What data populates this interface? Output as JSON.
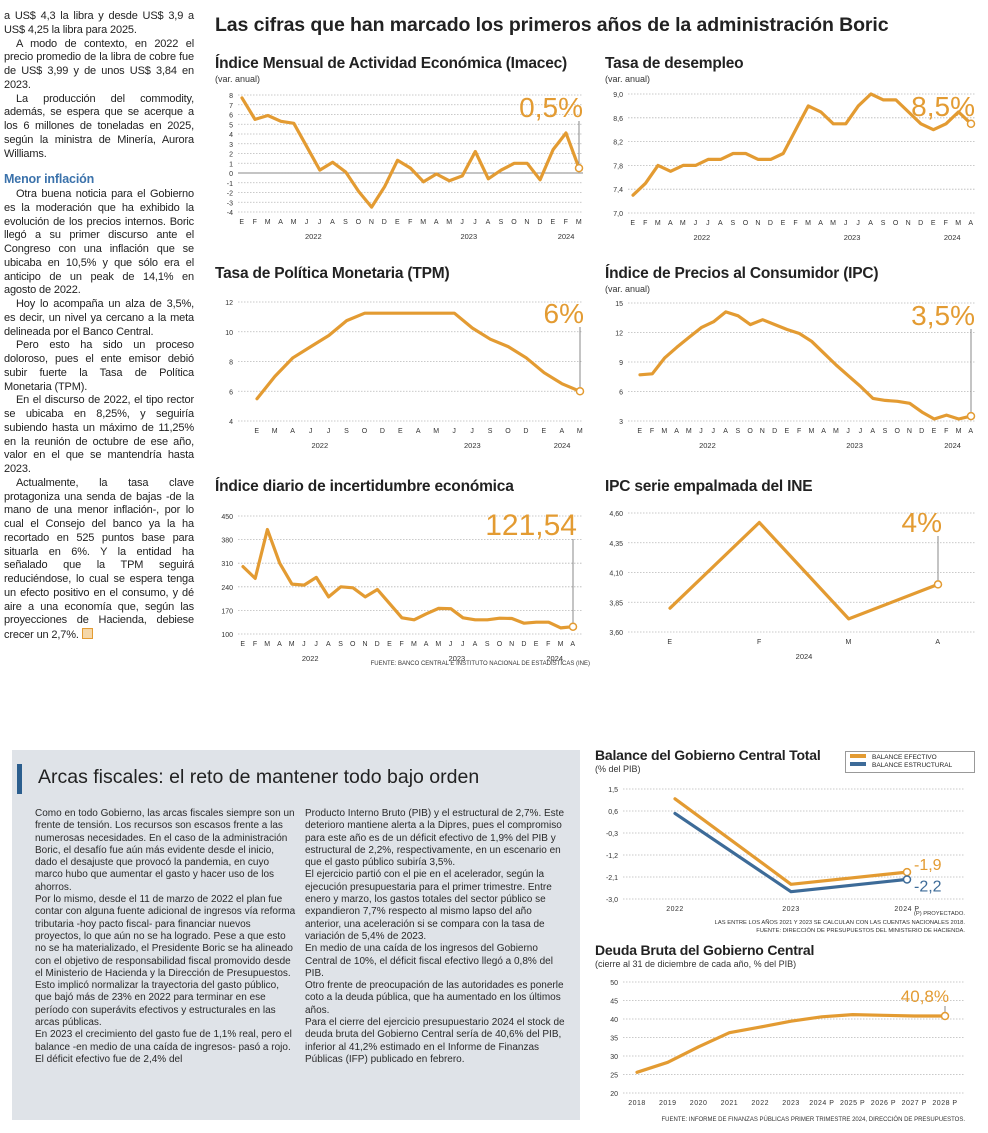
{
  "left_column": {
    "paragraphs_before": [
      "a US$ 4,3 la libra y desde US$ 3,9 a US$ 4,25 la libra para 2025.",
      "A modo de contexto, en 2022 el precio promedio de la libra de cobre fue de US$ 3,99 y de unos US$ 3,84 en 2023.",
      "La producción del commodity, además, se espera que se acerque a los 6 millones de toneladas en 2025, según la ministra de Minería, Aurora Williams."
    ],
    "subheading": "Menor inflación",
    "paragraphs_after": [
      "Otra buena noticia para el Gobierno es la moderación que ha exhibido la evolución de los precios internos. Boric llegó a su primer discurso ante el Congreso con una inflación que se ubicaba en 10,5% y que sólo era el anticipo de un peak de 14,1% en agosto de 2022.",
      "Hoy lo acompaña un alza de 3,5%, es decir, un nivel ya cercano a la meta delineada por el Banco Central.",
      "Pero esto ha sido un proceso doloroso, pues el ente emisor debió subir fuerte la Tasa de Política Monetaria (TPM).",
      "En el discurso de 2022, el tipo rector se ubicaba en 8,25%, y seguiría subiendo hasta un máximo de 11,25% en la reunión de octubre de ese año, valor en el que se mantendría hasta 2023.",
      "Actualmente, la tasa clave protagoniza una senda de bajas -de la mano de una menor inflación-, por lo cual el Consejo del banco ya la ha recortado en 525 puntos base para situarla en 6%. Y la entidad ha señalado que la TPM seguirá reduciéndose, lo cual se espera tenga un efecto positivo en el consumo, y dé aire a una economía que, según las proyecciones de Hacienda, debiese crecer un 2,7%."
    ],
    "end_mark_icon": "end-of-article-square"
  },
  "main_title": "Las cifras que han marcado los primeros años de la administración Boric",
  "sources": {
    "incertidumbre": "FUENTE: BANCO CENTRAL E INSTITUTO NACIONAL DE ESTADÍSTICAS (INE)",
    "balance_notes": [
      "(P) PROYECTADO.",
      "LAS ENTRE LOS AÑOS 2021 Y 2023 SE CALCULAN  CON LAS CUENTAS NACIONALES 2018.",
      "FUENTE: DIRECCIÓN DE PRESUPUESTOS DEL MINISTERIO DE HACIENDA."
    ],
    "deuda": "FUENTE: INFORME DE FINANZAS PÚBLICAS PRIMER TRIMESTRE 2024, DIRECCIÓN DE PRESUPUESTOS."
  },
  "fiscal": {
    "title": "Arcas fiscales: el reto de mantener todo bajo orden",
    "col1": [
      "Como en todo Gobierno, las arcas fiscales siempre son un frente de tensión. Los recursos son escasos frente a las numerosas necesidades. En el caso de la administración Boric, el desafío fue aún más evidente desde el inicio, dado el desajuste que provocó la pandemia, en cuyo marco hubo que aumentar el gasto y hacer uso de los ahorros.",
      "Por lo mismo, desde el 11 de marzo de 2022 el plan fue contar con alguna fuente adicional de ingresos vía reforma tributaria -hoy pacto fiscal- para financiar nuevos proyectos, lo que aún no se ha logrado. Pese a que esto no se ha materializado, el Presidente Boric se ha alineado con el objetivo de responsabilidad fiscal promovido desde el Ministerio de Hacienda y la Dirección de Presupuestos. Esto implicó normalizar la trayectoria del gasto público, que bajó más de 23% en 2022 para terminar en ese período con superávits efectivos y estructurales en las arcas públicas.",
      "En 2023 el crecimiento del gasto fue de 1,1% real, pero el balance -en medio de una caída de ingresos- pasó a rojo. El déficit efectivo fue de 2,4% del"
    ],
    "col2": [
      "Producto Interno Bruto (PIB) y el estructural de 2,7%. Este deterioro mantiene alerta a la Dipres, pues el compromiso para este año es de un déficit efectivo de 1,9% del PIB y estructural de 2,2%, respectivamente, en un escenario en que el gasto público subiría 3,5%.",
      "El ejercicio partió con el pie en el acelerador, según la ejecución presupuestaria para el primer trimestre. Entre enero y marzo, los gastos totales del sector público se expandieron 7,7% respecto al mismo lapso del año anterior, una aceleración si se compara con la tasa de variación de 5,4% de 2023.",
      "En medio de una caída de los ingresos del Gobierno Central de 10%, el déficit fiscal efectivo llegó a 0,8% del PIB.",
      "Otro frente de preocupación de las autoridades es ponerle coto a la deuda pública, que ha aumentado en los últimos años.",
      "Para el cierre del ejercicio presupuestario 2024 el stock de deuda bruta del Gobierno Central sería de 40,6% del PIB, inferior al 41,2% estimado en el Informe de Finanzas Públicas (IFP) publicado en febrero."
    ]
  },
  "colors": {
    "orange": "#e39b32",
    "blue": "#3d6b98",
    "accent_bar": "#2b5e8e",
    "box_bg": "#dfe3e8"
  },
  "chart_data": [
    {
      "type": "line",
      "title": "Índice Mensual de Actividad Económica (Imacec)",
      "subtitle": "(var. anual)",
      "x_labels": [
        "E",
        "F",
        "M",
        "A",
        "M",
        "J",
        "J",
        "A",
        "S",
        "O",
        "N",
        "D",
        "E",
        "F",
        "M",
        "A",
        "M",
        "J",
        "J",
        "A",
        "S",
        "O",
        "N",
        "D",
        "E",
        "F",
        "M"
      ],
      "year_labels": [
        {
          "label": "2022",
          "at": 5.5
        },
        {
          "label": "2023",
          "at": 17.5
        },
        {
          "label": "2024",
          "at": 25
        }
      ],
      "yticks": [
        8,
        7,
        6,
        5,
        4,
        3,
        2,
        1,
        0,
        -1,
        -2,
        -3,
        -4
      ],
      "ytick_labels": [
        "8",
        "7",
        "6",
        "5",
        "4",
        "3",
        "2",
        "1",
        "0",
        "-1",
        "-2",
        "-3",
        "-4"
      ],
      "ylim": [
        -4,
        8
      ],
      "zero_line": true,
      "grid": true,
      "series": [
        {
          "color": "#e39b32",
          "values": [
            7.7,
            5.5,
            5.9,
            5.3,
            5.1,
            2.7,
            0.3,
            1.1,
            0.1,
            -1.9,
            -3.5,
            -1.4,
            1.3,
            0.5,
            -0.9,
            -0.1,
            -0.8,
            -0.3,
            2.2,
            -0.6,
            0.3,
            1.0,
            1.0,
            -0.7,
            2.4,
            4.1,
            0.5
          ]
        }
      ],
      "callout": "0,5%"
    },
    {
      "type": "line",
      "title": "Tasa de desempleo",
      "subtitle": "(var. anual)",
      "x_labels": [
        "E",
        "F",
        "M",
        "A",
        "M",
        "J",
        "J",
        "A",
        "S",
        "O",
        "N",
        "D",
        "E",
        "F",
        "M",
        "A",
        "M",
        "J",
        "J",
        "A",
        "S",
        "O",
        "N",
        "D",
        "E",
        "F",
        "M",
        "A"
      ],
      "year_labels": [
        {
          "label": "2022",
          "at": 5.5
        },
        {
          "label": "2023",
          "at": 17.5
        },
        {
          "label": "2024",
          "at": 25.5
        }
      ],
      "yticks": [
        9.0,
        8.6,
        8.2,
        7.8,
        7.4,
        7.0
      ],
      "ytick_labels": [
        "9,0",
        "8,6",
        "8,2",
        "7,8",
        "7,4",
        "7,0"
      ],
      "ylim": [
        7.0,
        9.0
      ],
      "grid": true,
      "series": [
        {
          "color": "#e39b32",
          "values": [
            7.3,
            7.5,
            7.8,
            7.7,
            7.8,
            7.8,
            7.9,
            7.9,
            8.0,
            8.0,
            7.9,
            7.9,
            8.0,
            8.4,
            8.8,
            8.7,
            8.5,
            8.5,
            8.8,
            9.0,
            8.9,
            8.9,
            8.7,
            8.5,
            8.4,
            8.5,
            8.7,
            8.5
          ]
        }
      ],
      "callout": "8,5%"
    },
    {
      "type": "line",
      "title": "Tasa de Política Monetaria (TPM)",
      "subtitle": "",
      "x_labels": [
        "E",
        "M",
        "A",
        "J",
        "J",
        "S",
        "O",
        "D",
        "E",
        "A",
        "M",
        "J",
        "J",
        "S",
        "O",
        "D",
        "E",
        "A",
        "M"
      ],
      "year_labels": [
        {
          "label": "2022",
          "at": 3.5
        },
        {
          "label": "2023",
          "at": 12
        },
        {
          "label": "2024",
          "at": 17
        }
      ],
      "yticks": [
        12,
        10,
        8,
        6,
        4
      ],
      "ytick_labels": [
        "12",
        "10",
        "8",
        "6",
        "4"
      ],
      "ylim": [
        4,
        12
      ],
      "grid": true,
      "series": [
        {
          "color": "#e39b32",
          "values": [
            5.5,
            7.0,
            8.25,
            9.0,
            9.75,
            10.75,
            11.25,
            11.25,
            11.25,
            11.25,
            11.25,
            11.25,
            10.25,
            9.5,
            9.0,
            8.25,
            7.25,
            6.5,
            6.0
          ]
        }
      ],
      "callout": "6%"
    },
    {
      "type": "line",
      "title": "Índice de Precios al Consumidor (IPC)",
      "subtitle": "(var. anual)",
      "x_labels": [
        "E",
        "F",
        "M",
        "A",
        "M",
        "J",
        "J",
        "A",
        "S",
        "O",
        "N",
        "D",
        "E",
        "F",
        "M",
        "A",
        "M",
        "J",
        "J",
        "A",
        "S",
        "O",
        "N",
        "D",
        "E",
        "F",
        "M",
        "A"
      ],
      "year_labels": [
        {
          "label": "2022",
          "at": 5.5
        },
        {
          "label": "2023",
          "at": 17.5
        },
        {
          "label": "2024",
          "at": 25.5
        }
      ],
      "yticks": [
        15,
        12,
        9,
        6,
        3
      ],
      "ytick_labels": [
        "15",
        "12",
        "9",
        "6",
        "3"
      ],
      "ylim": [
        3,
        15
      ],
      "grid": true,
      "series": [
        {
          "color": "#e39b32",
          "values": [
            7.7,
            7.8,
            9.4,
            10.5,
            11.5,
            12.5,
            13.1,
            14.1,
            13.7,
            12.8,
            13.3,
            12.8,
            12.3,
            11.9,
            11.1,
            9.9,
            8.7,
            7.6,
            6.5,
            5.3,
            5.1,
            5.0,
            4.8,
            3.9,
            3.2,
            3.6,
            3.2,
            3.5
          ]
        }
      ],
      "callout": "3,5%"
    },
    {
      "type": "line",
      "title": "Índice diario de incertidumbre económica",
      "subtitle": "",
      "x_labels": [
        "E",
        "F",
        "M",
        "A",
        "M",
        "J",
        "J",
        "A",
        "S",
        "O",
        "N",
        "D",
        "E",
        "F",
        "M",
        "A",
        "M",
        "J",
        "J",
        "A",
        "S",
        "O",
        "N",
        "D",
        "E",
        "F",
        "M",
        "A"
      ],
      "year_labels": [
        {
          "label": "2022",
          "at": 5.5
        },
        {
          "label": "2023",
          "at": 17.5
        },
        {
          "label": "2024",
          "at": 25.5
        }
      ],
      "yticks": [
        450,
        380,
        310,
        240,
        170,
        100
      ],
      "ytick_labels": [
        "450",
        "380",
        "310",
        "240",
        "170",
        "100"
      ],
      "ylim": [
        100,
        450
      ],
      "grid": true,
      "series": [
        {
          "color": "#e39b32",
          "values": [
            300,
            265,
            410,
            310,
            248,
            245,
            268,
            210,
            240,
            237,
            210,
            232,
            190,
            148,
            142,
            160,
            176,
            175,
            148,
            142,
            142,
            147,
            146,
            132,
            135,
            135,
            118,
            121.54
          ]
        }
      ],
      "callout": "121,54"
    },
    {
      "type": "line",
      "title": "IPC serie empalmada del INE",
      "subtitle": "",
      "x_labels": [
        "E",
        "F",
        "M",
        "A"
      ],
      "year_labels": [
        {
          "label": "2024",
          "at": 1.5
        }
      ],
      "yticks": [
        4.6,
        4.35,
        4.1,
        3.85,
        3.6
      ],
      "ytick_labels": [
        "4,60",
        "4,35",
        "4,10",
        "3,85",
        "3,60"
      ],
      "ylim": [
        3.6,
        4.6
      ],
      "grid": true,
      "series": [
        {
          "color": "#e39b32",
          "values": [
            3.8,
            4.52,
            3.71,
            4.0
          ]
        }
      ],
      "callout": "4%"
    },
    {
      "type": "line",
      "title": "Balance del Gobierno Central Total",
      "subtitle": "(% del PIB)",
      "x_labels": [
        "2022",
        "2023",
        "2024 P"
      ],
      "yticks": [
        1.5,
        0.6,
        -0.3,
        -1.2,
        -2.1,
        -3.0
      ],
      "ytick_labels": [
        "1,5",
        "0,6",
        "-0,3",
        "-1,2",
        "-2,1",
        "-3,0"
      ],
      "ylim": [
        -3.0,
        1.5
      ],
      "grid": true,
      "legend": "top-right",
      "series": [
        {
          "name": "BALANCE EFECTIVO",
          "color": "#e39b32",
          "values": [
            1.1,
            -2.4,
            -1.9
          ],
          "end_label": "-1,9"
        },
        {
          "name": "BALANCE ESTRUCTURAL",
          "color": "#3d6b98",
          "values": [
            0.5,
            -2.7,
            -2.2
          ],
          "end_label": "-2,2"
        }
      ]
    },
    {
      "type": "line",
      "title": "Deuda Bruta del Gobierno Central",
      "subtitle": "(cierre al 31 de diciembre de cada año, % del PIB)",
      "x_labels": [
        "2018",
        "2019",
        "2020",
        "2021",
        "2022",
        "2023",
        "2024 P",
        "2025 P",
        "2026 P",
        "2027 P",
        "2028 P"
      ],
      "yticks": [
        50,
        45,
        40,
        35,
        30,
        25,
        20
      ],
      "ytick_labels": [
        "50",
        "45",
        "40",
        "35",
        "30",
        "25",
        "20"
      ],
      "ylim": [
        20,
        50
      ],
      "grid": true,
      "series": [
        {
          "color": "#e39b32",
          "values": [
            25.6,
            28.3,
            32.5,
            36.3,
            37.8,
            39.4,
            40.6,
            41.2,
            41.0,
            40.8,
            40.8
          ]
        }
      ],
      "callout": "40,8%"
    }
  ]
}
